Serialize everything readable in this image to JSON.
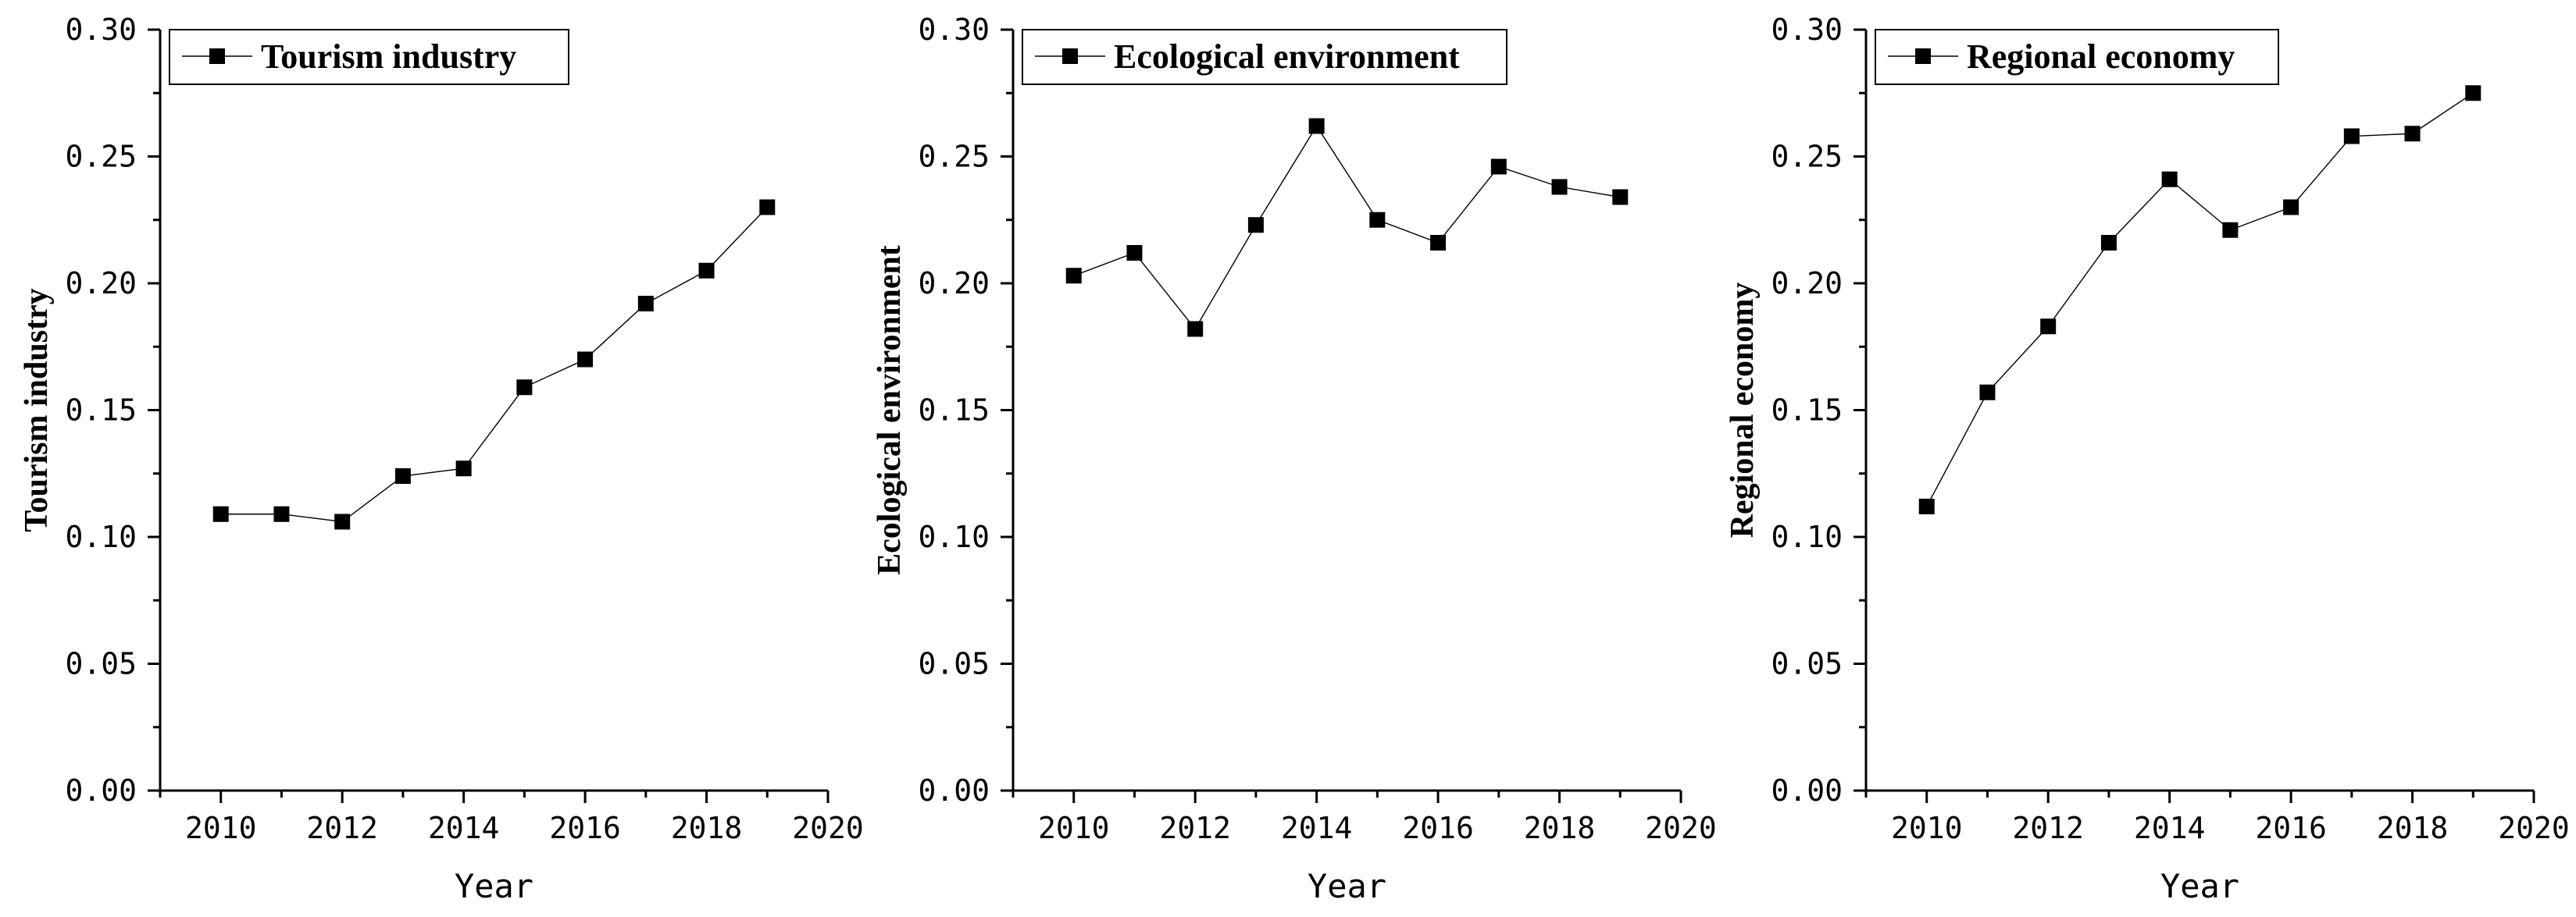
{
  "chart_data": [
    {
      "type": "line",
      "title": "",
      "xlabel": "Year",
      "ylabel": "Tourism industry",
      "legend": "Tourism industry",
      "legend_position": "top-left",
      "xlim": [
        2009,
        2020
      ],
      "ylim": [
        0,
        0.3
      ],
      "xticks": [
        2010,
        2012,
        2014,
        2016,
        2018,
        2020
      ],
      "yticks": [
        "0.00",
        "0.05",
        "0.10",
        "0.15",
        "0.20",
        "0.25",
        "0.30"
      ],
      "grid": false,
      "x": [
        2010,
        2011,
        2012,
        2013,
        2014,
        2015,
        2016,
        2017,
        2018,
        2019
      ],
      "values": [
        0.109,
        0.109,
        0.106,
        0.124,
        0.127,
        0.159,
        0.17,
        0.192,
        0.205,
        0.23
      ]
    },
    {
      "type": "line",
      "title": "",
      "xlabel": "Year",
      "ylabel": "Ecological environment",
      "legend": "Ecological environment",
      "legend_position": "top-left",
      "xlim": [
        2009,
        2020
      ],
      "ylim": [
        0,
        0.3
      ],
      "xticks": [
        2010,
        2012,
        2014,
        2016,
        2018,
        2020
      ],
      "yticks": [
        "0.00",
        "0.05",
        "0.10",
        "0.15",
        "0.20",
        "0.25",
        "0.30"
      ],
      "grid": false,
      "x": [
        2010,
        2011,
        2012,
        2013,
        2014,
        2015,
        2016,
        2017,
        2018,
        2019
      ],
      "values": [
        0.203,
        0.212,
        0.182,
        0.223,
        0.262,
        0.225,
        0.216,
        0.246,
        0.238,
        0.234
      ]
    },
    {
      "type": "line",
      "title": "",
      "xlabel": "Year",
      "ylabel": "Regional economy",
      "legend": "Regional economy",
      "legend_position": "top-left",
      "xlim": [
        2009,
        2020
      ],
      "ylim": [
        0,
        0.3
      ],
      "xticks": [
        2010,
        2012,
        2014,
        2016,
        2018,
        2020
      ],
      "yticks": [
        "0.00",
        "0.05",
        "0.10",
        "0.15",
        "0.20",
        "0.25",
        "0.30"
      ],
      "grid": false,
      "x": [
        2010,
        2011,
        2012,
        2013,
        2014,
        2015,
        2016,
        2017,
        2018,
        2019
      ],
      "values": [
        0.112,
        0.157,
        0.183,
        0.216,
        0.241,
        0.221,
        0.23,
        0.258,
        0.259,
        0.275
      ]
    }
  ]
}
